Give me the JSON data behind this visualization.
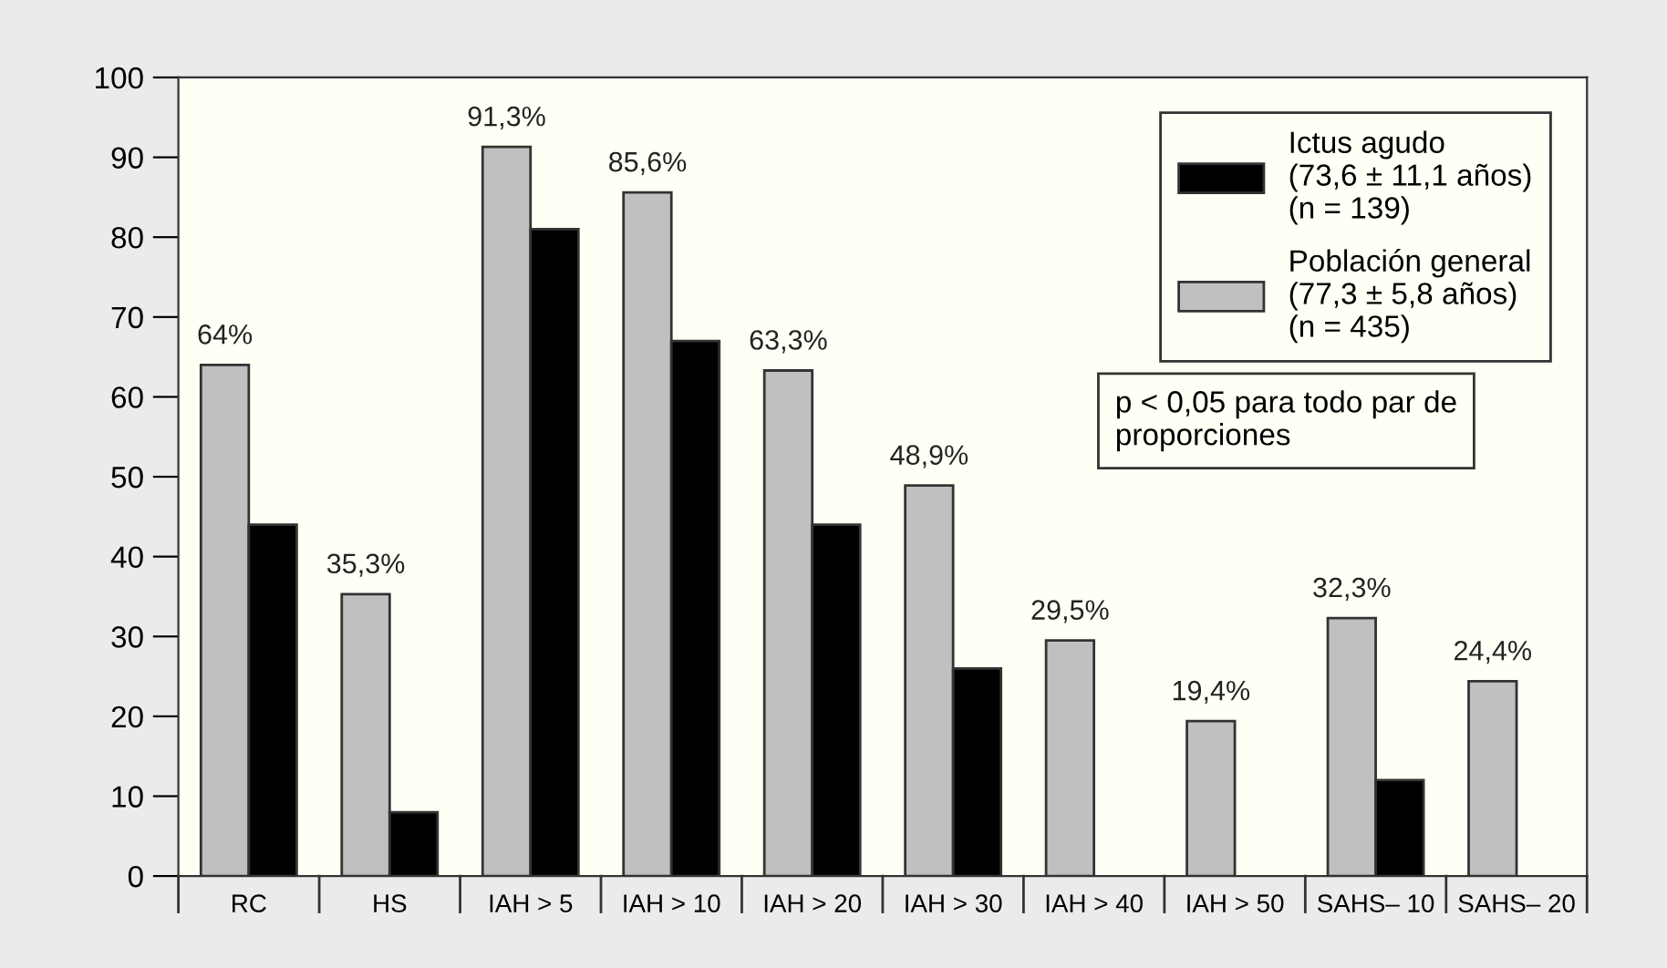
{
  "chart_data": {
    "type": "bar",
    "categories": [
      "RC",
      "HS",
      "IAH > 5",
      "IAH > 10",
      "IAH > 20",
      "IAH > 30",
      "IAH > 40",
      "IAH > 50",
      "SAHS– 10",
      "SAHS– 20"
    ],
    "series": [
      {
        "name": "Población general\n(77,3 ± 5,8 años)\n(n = 435)",
        "color": "#c0c0c0",
        "values": [
          64,
          35.3,
          91.3,
          85.6,
          63.3,
          48.9,
          29.5,
          19.4,
          32.3,
          24.4
        ],
        "value_labels": [
          "64%",
          "35,3%",
          "91,3%",
          "85,6%",
          "63,3%",
          "48,9%",
          "29,5%",
          "19,4%",
          "32,3%",
          "24,4%"
        ]
      },
      {
        "name": "Ictus agudo\n(73,6 ± 11,1 años)\n(n = 139)",
        "color": "#000000",
        "values": [
          44,
          8,
          81,
          67,
          44,
          26,
          null,
          null,
          12,
          null
        ]
      }
    ],
    "ylim": [
      0,
      100
    ],
    "yticks": [
      0,
      10,
      20,
      30,
      40,
      50,
      60,
      70,
      80,
      90,
      100
    ],
    "grid": false,
    "legend": "top right",
    "annotations": [
      "p < 0,05 para todo par de\nproporciones"
    ]
  }
}
